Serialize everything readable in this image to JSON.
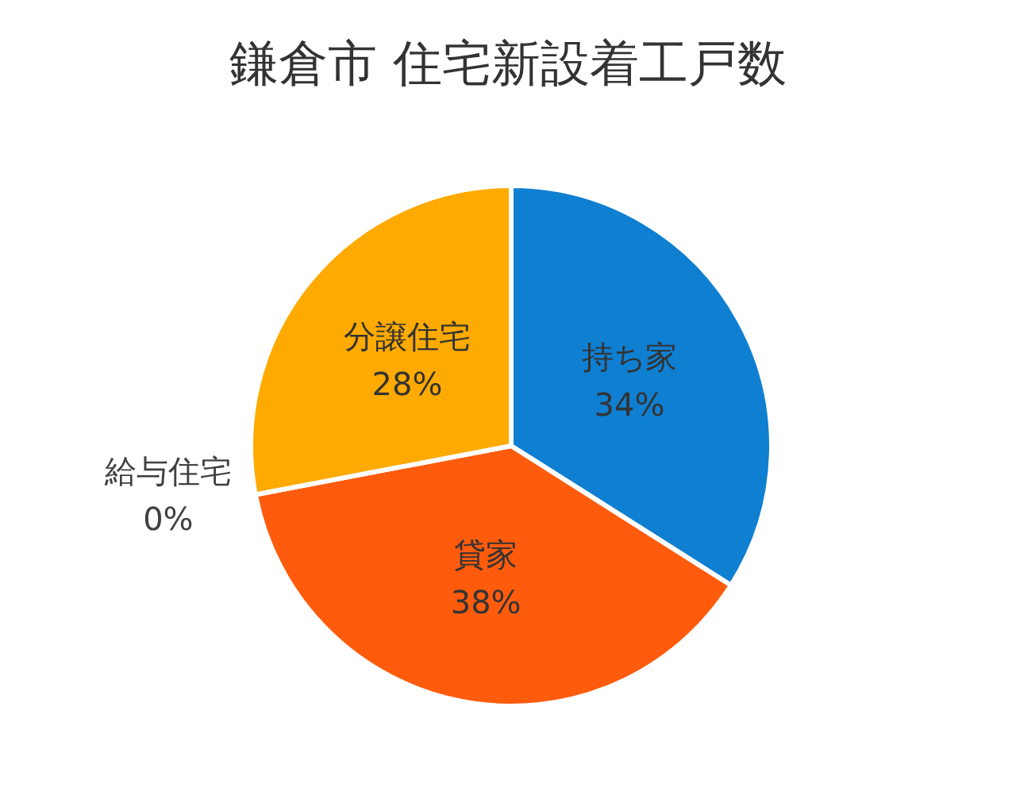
{
  "chart_data": {
    "type": "pie",
    "title": "鎌倉市 住宅新設着工戸数",
    "categories": [
      "持ち家",
      "貸家",
      "給与住宅",
      "分譲住宅"
    ],
    "values": [
      34,
      38,
      0,
      28
    ],
    "value_labels": [
      "34%",
      "38%",
      "0%",
      "28%"
    ],
    "colors": [
      "#0f7fd1",
      "#ff5b0d",
      "#a5a5a5",
      "#ffaa00"
    ]
  }
}
